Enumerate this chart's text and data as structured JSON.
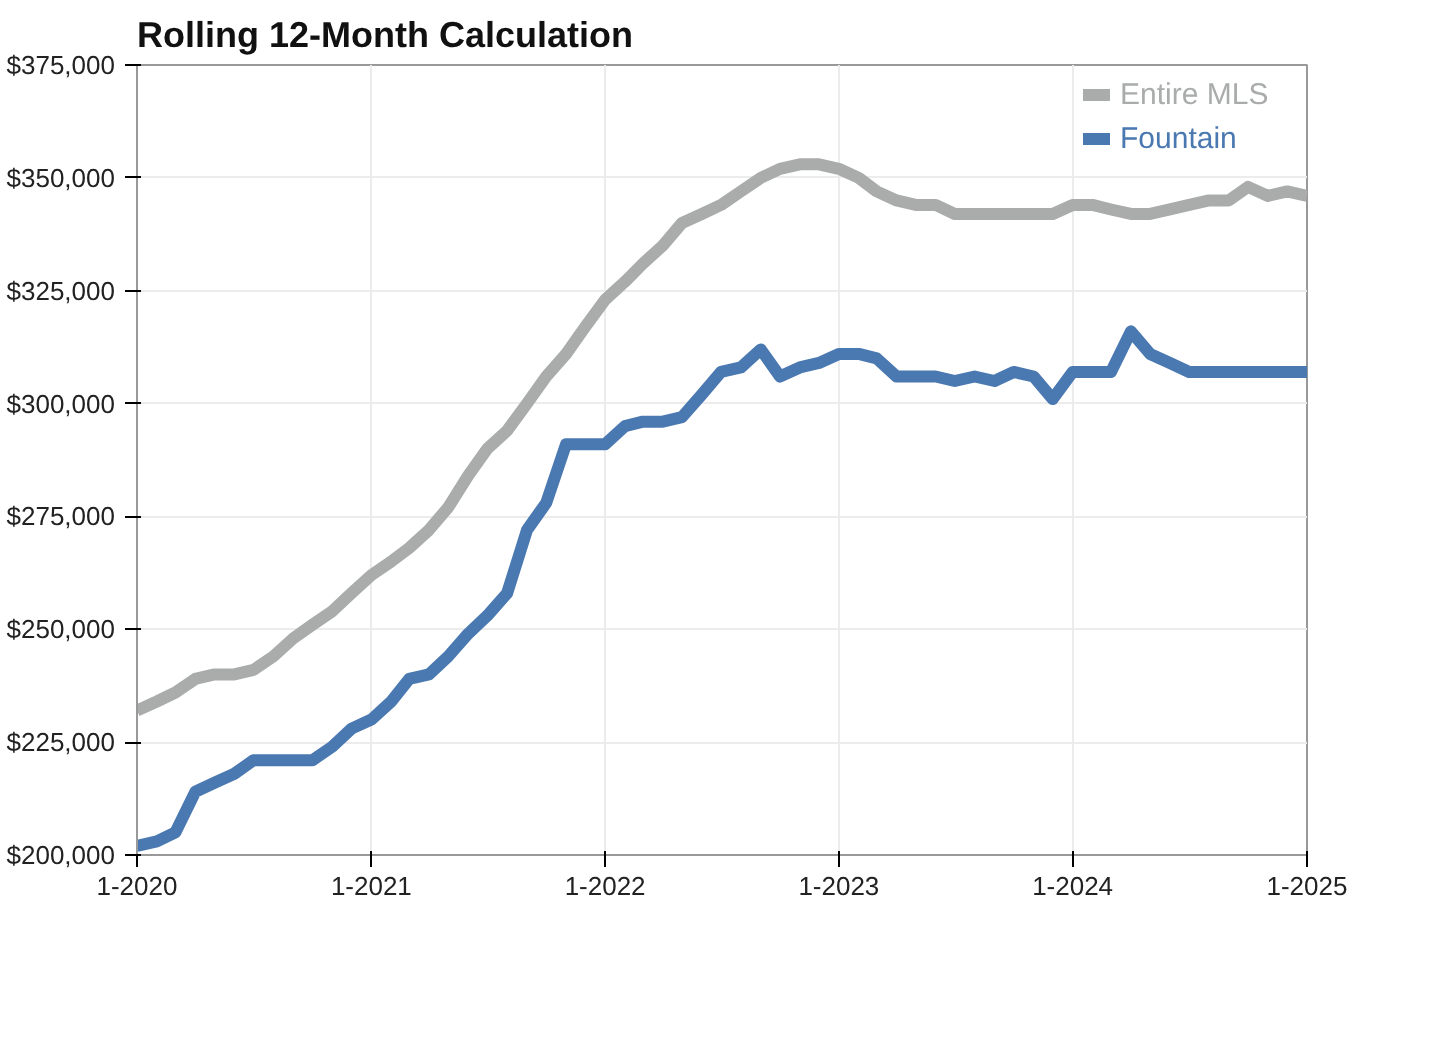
{
  "chart_data": {
    "type": "line",
    "title": "Rolling 12-Month Calculation",
    "x": [
      "2020-01",
      "2020-02",
      "2020-03",
      "2020-04",
      "2020-05",
      "2020-06",
      "2020-07",
      "2020-08",
      "2020-09",
      "2020-10",
      "2020-11",
      "2020-12",
      "2021-01",
      "2021-02",
      "2021-03",
      "2021-04",
      "2021-05",
      "2021-06",
      "2021-07",
      "2021-08",
      "2021-09",
      "2021-10",
      "2021-11",
      "2021-12",
      "2022-01",
      "2022-02",
      "2022-03",
      "2022-04",
      "2022-05",
      "2022-06",
      "2022-07",
      "2022-08",
      "2022-09",
      "2022-10",
      "2022-11",
      "2022-12",
      "2023-01",
      "2023-02",
      "2023-03",
      "2023-04",
      "2023-05",
      "2023-06",
      "2023-07",
      "2023-08",
      "2023-09",
      "2023-10",
      "2023-11",
      "2023-12",
      "2024-01",
      "2024-02",
      "2024-03",
      "2024-04",
      "2024-05",
      "2024-06",
      "2024-07",
      "2024-08",
      "2024-09",
      "2024-10",
      "2024-11",
      "2024-12",
      "2025-01"
    ],
    "series": [
      {
        "name": "Entire MLS",
        "color": "#a9acab",
        "values": [
          232000,
          234000,
          236000,
          239000,
          240000,
          240000,
          241000,
          244000,
          248000,
          251000,
          254000,
          258000,
          262000,
          265000,
          268000,
          272000,
          277000,
          284000,
          290000,
          294000,
          300000,
          306000,
          311000,
          317000,
          323000,
          327000,
          331000,
          335000,
          340000,
          342000,
          344000,
          347000,
          350000,
          352000,
          353000,
          353000,
          352000,
          350000,
          347000,
          345000,
          344000,
          344000,
          342000,
          342000,
          342000,
          342000,
          342000,
          342000,
          344000,
          344000,
          343000,
          342000,
          342000,
          343000,
          344000,
          345000,
          345000,
          348000,
          346000,
          347000,
          346000
        ]
      },
      {
        "name": "Fountain",
        "color": "#4a78b0",
        "values": [
          202000,
          203000,
          205000,
          214000,
          216000,
          218000,
          221000,
          221000,
          221000,
          221000,
          224000,
          228000,
          230000,
          234000,
          239000,
          240000,
          244000,
          249000,
          253000,
          258000,
          272000,
          278000,
          291000,
          291000,
          291000,
          295000,
          296000,
          296000,
          297000,
          302000,
          307000,
          308000,
          312000,
          306000,
          308000,
          309000,
          311000,
          311000,
          310000,
          306000,
          306000,
          306000,
          305000,
          306000,
          305000,
          307000,
          306000,
          301000,
          307000,
          307000,
          307000,
          316000,
          311000,
          309000,
          307000,
          307000,
          307000,
          307000,
          307000,
          307000,
          307000
        ]
      }
    ],
    "xlim": [
      "2020-01",
      "2025-01"
    ],
    "xticks": [
      {
        "value": "2020-01",
        "label": "1-2020"
      },
      {
        "value": "2021-01",
        "label": "1-2021"
      },
      {
        "value": "2022-01",
        "label": "1-2022"
      },
      {
        "value": "2023-01",
        "label": "1-2023"
      },
      {
        "value": "2024-01",
        "label": "1-2024"
      },
      {
        "value": "2025-01",
        "label": "1-2025"
      }
    ],
    "ylim": [
      200000,
      375000
    ],
    "yticks": [
      {
        "value": 200000,
        "label": "$200,000"
      },
      {
        "value": 225000,
        "label": "$225,000"
      },
      {
        "value": 250000,
        "label": "$250,000"
      },
      {
        "value": 275000,
        "label": "$275,000"
      },
      {
        "value": 300000,
        "label": "$300,000"
      },
      {
        "value": 325000,
        "label": "$325,000"
      },
      {
        "value": 350000,
        "label": "$350,000"
      },
      {
        "value": 375000,
        "label": "$375,000"
      }
    ],
    "grid": true,
    "legend": "top right",
    "marker": "none",
    "line_style": "solid"
  }
}
